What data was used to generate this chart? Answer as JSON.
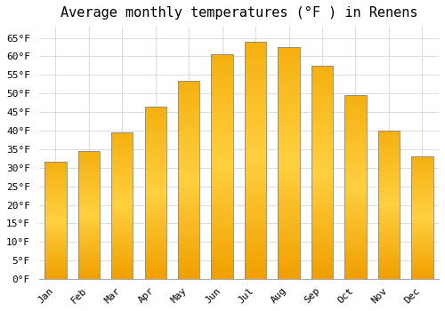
{
  "title": "Average monthly temperatures (°F ) in Renens",
  "months": [
    "Jan",
    "Feb",
    "Mar",
    "Apr",
    "May",
    "Jun",
    "Jul",
    "Aug",
    "Sep",
    "Oct",
    "Nov",
    "Dec"
  ],
  "values": [
    31.5,
    34.5,
    39.5,
    46.5,
    53.5,
    60.5,
    64.0,
    62.5,
    57.5,
    49.5,
    40.0,
    33.0
  ],
  "bar_color_center": "#FFD040",
  "bar_color_edge": "#F0A000",
  "bar_border_color": "#888888",
  "background_color": "#FFFFFF",
  "plot_bg_color": "#FFFFFF",
  "grid_color": "#DDDDDD",
  "ylim": [
    0,
    68
  ],
  "yticks": [
    0,
    5,
    10,
    15,
    20,
    25,
    30,
    35,
    40,
    45,
    50,
    55,
    60,
    65
  ],
  "title_fontsize": 11,
  "tick_fontsize": 8,
  "bar_width": 0.65
}
